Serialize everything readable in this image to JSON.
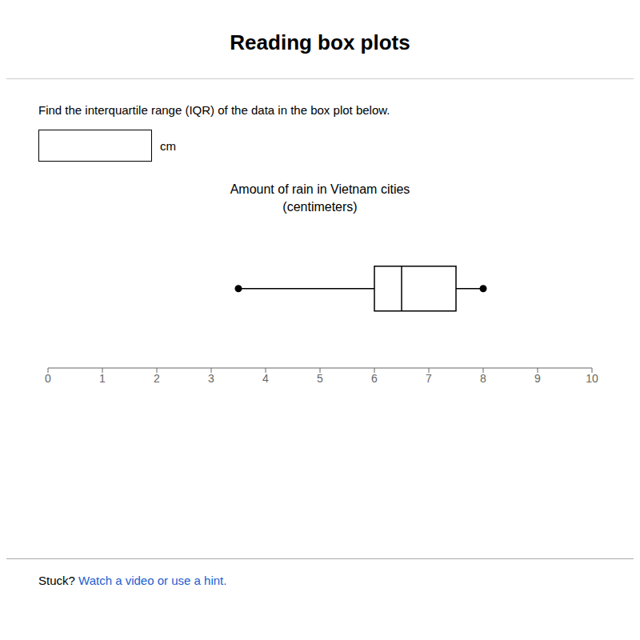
{
  "chart_data": {
    "type": "box",
    "title": "Amount of rain in Vietnam cities\n(centimeters)",
    "annotations": [
      "Reading box plots",
      "Find the interquartile range (IQR) of the data in the box plot below.",
      "cm",
      "Stuck?",
      "Watch a video or use a hint."
    ],
    "boxes": [
      {
        "min": 3.5,
        "q1": 6,
        "median": 6.5,
        "q3": 7.5,
        "max": 8
      }
    ],
    "xlim": [
      0,
      10
    ],
    "xticks": [
      0,
      1,
      2,
      3,
      4,
      5,
      6,
      7,
      8,
      9,
      10
    ],
    "color": "black",
    "grid": false,
    "tick_labels": "x"
  }
}
